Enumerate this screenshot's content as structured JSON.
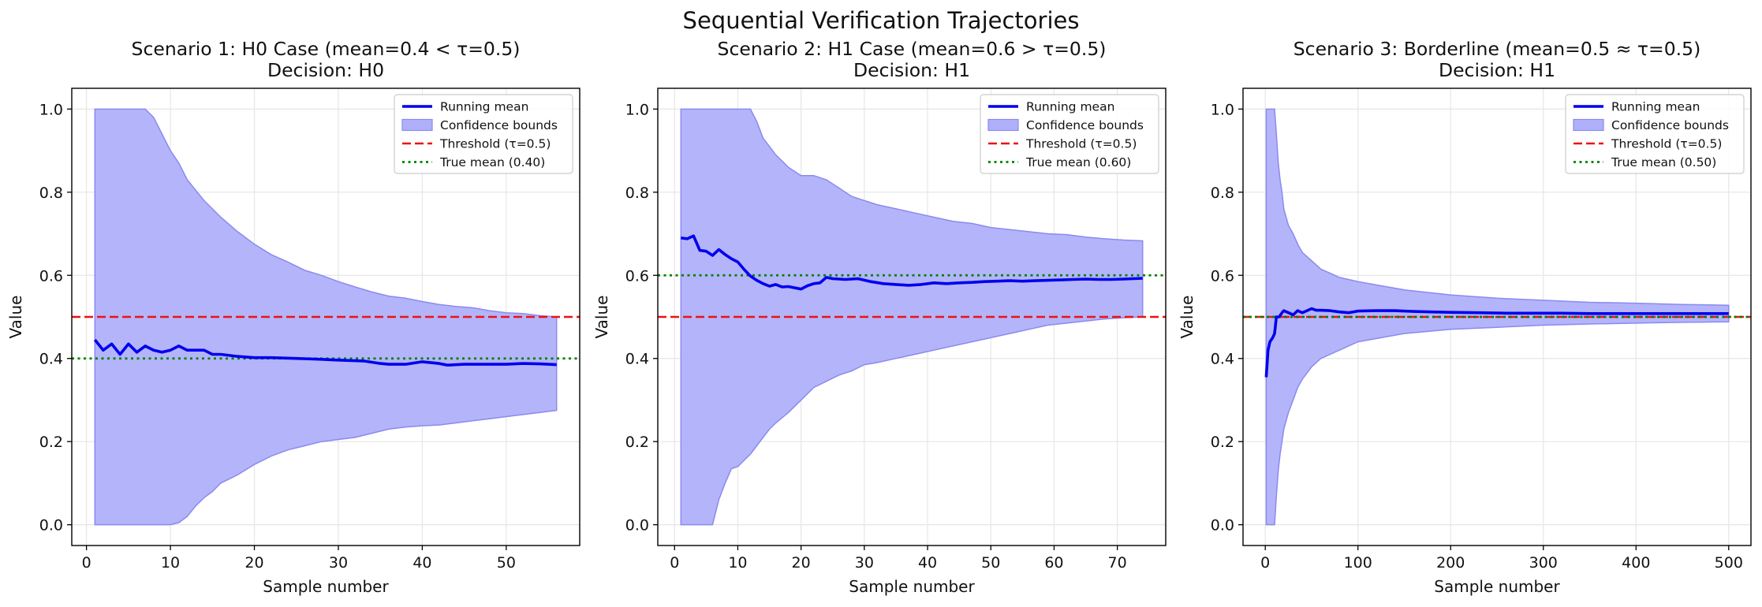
{
  "figure": {
    "suptitle": "Sequential Verification Trajectories"
  },
  "colors": {
    "running_mean": "#0000ee",
    "band": "#b0b0fa",
    "band_edge": "#8a8af0",
    "threshold": "#ee1111",
    "true_mean": "#008000"
  },
  "chart_data": [
    {
      "type": "line",
      "title": "Scenario 1: H0 Case (mean=0.4 < τ=0.5)",
      "subtitle": "Decision: H0",
      "xlabel": "Sample number",
      "ylabel": "Value",
      "xlim": [
        -1.75,
        58.75
      ],
      "ylim": [
        -0.05,
        1.05
      ],
      "xticks": [
        0,
        10,
        20,
        30,
        40,
        50
      ],
      "yticks": [
        0.0,
        0.2,
        0.4,
        0.6,
        0.8,
        1.0
      ],
      "grid": true,
      "legend_position": "top-right",
      "legend": [
        "Running mean",
        "Confidence bounds",
        "Threshold (τ=0.5)",
        "True mean (0.40)"
      ],
      "threshold": 0.5,
      "true_mean": 0.4,
      "series": [
        {
          "name": "Running mean",
          "x": [
            1,
            2,
            3,
            4,
            5,
            6,
            7,
            8,
            9,
            10,
            11,
            12,
            13,
            14,
            15,
            16,
            18,
            20,
            22,
            25,
            28,
            30,
            33,
            35,
            36,
            38,
            40,
            42,
            43,
            45,
            48,
            50,
            52,
            54,
            56
          ],
          "y": [
            0.445,
            0.42,
            0.435,
            0.41,
            0.435,
            0.415,
            0.43,
            0.42,
            0.415,
            0.42,
            0.43,
            0.42,
            0.42,
            0.42,
            0.41,
            0.41,
            0.405,
            0.402,
            0.402,
            0.4,
            0.398,
            0.396,
            0.394,
            0.388,
            0.386,
            0.386,
            0.392,
            0.388,
            0.384,
            0.386,
            0.386,
            0.386,
            0.388,
            0.387,
            0.385
          ]
        },
        {
          "name": "Confidence bounds upper",
          "x": [
            1,
            7,
            8,
            9,
            10,
            11,
            12,
            14,
            16,
            18,
            20,
            22,
            24,
            26,
            28,
            30,
            32,
            34,
            36,
            38,
            40,
            42,
            44,
            46,
            48,
            50,
            52,
            54,
            56
          ],
          "y": [
            1.0,
            1.0,
            0.98,
            0.94,
            0.9,
            0.87,
            0.83,
            0.78,
            0.74,
            0.705,
            0.675,
            0.65,
            0.632,
            0.612,
            0.6,
            0.585,
            0.572,
            0.56,
            0.55,
            0.545,
            0.537,
            0.53,
            0.525,
            0.522,
            0.515,
            0.51,
            0.508,
            0.503,
            0.5
          ]
        },
        {
          "name": "Confidence bounds lower",
          "x": [
            1,
            10,
            11,
            12,
            13,
            14,
            15,
            16,
            18,
            20,
            22,
            24,
            26,
            28,
            30,
            32,
            34,
            36,
            38,
            40,
            42,
            44,
            46,
            48,
            50,
            52,
            54,
            56
          ],
          "y": [
            0.0,
            0.0,
            0.005,
            0.02,
            0.045,
            0.065,
            0.08,
            0.1,
            0.12,
            0.145,
            0.165,
            0.18,
            0.19,
            0.2,
            0.205,
            0.21,
            0.22,
            0.23,
            0.235,
            0.238,
            0.24,
            0.245,
            0.25,
            0.255,
            0.26,
            0.265,
            0.27,
            0.275
          ]
        }
      ]
    },
    {
      "type": "line",
      "title": "Scenario 2: H1 Case (mean=0.6 > τ=0.5)",
      "subtitle": "Decision: H1",
      "xlabel": "Sample number",
      "ylabel": "Value",
      "xlim": [
        -2.65,
        77.65
      ],
      "ylim": [
        -0.05,
        1.05
      ],
      "xticks": [
        0,
        10,
        20,
        30,
        40,
        50,
        60,
        70
      ],
      "yticks": [
        0.0,
        0.2,
        0.4,
        0.6,
        0.8,
        1.0
      ],
      "grid": true,
      "legend_position": "top-right",
      "legend": [
        "Running mean",
        "Confidence bounds",
        "Threshold (τ=0.5)",
        "True mean (0.60)"
      ],
      "threshold": 0.5,
      "true_mean": 0.6,
      "series": [
        {
          "name": "Running mean",
          "x": [
            1,
            2,
            3,
            4,
            5,
            6,
            7,
            8,
            9,
            10,
            11,
            12,
            13,
            14,
            15,
            16,
            17,
            18,
            19,
            20,
            21,
            22,
            23,
            24,
            25,
            27,
            29,
            31,
            33,
            35,
            37,
            39,
            41,
            43,
            45,
            47,
            49,
            51,
            53,
            55,
            57,
            59,
            61,
            63,
            65,
            67,
            69,
            71,
            74
          ],
          "y": [
            0.69,
            0.688,
            0.695,
            0.66,
            0.658,
            0.648,
            0.662,
            0.65,
            0.64,
            0.632,
            0.614,
            0.598,
            0.588,
            0.58,
            0.574,
            0.578,
            0.572,
            0.573,
            0.57,
            0.567,
            0.575,
            0.58,
            0.582,
            0.595,
            0.592,
            0.59,
            0.592,
            0.585,
            0.58,
            0.578,
            0.576,
            0.578,
            0.582,
            0.58,
            0.582,
            0.583,
            0.585,
            0.586,
            0.587,
            0.586,
            0.587,
            0.588,
            0.589,
            0.59,
            0.591,
            0.59,
            0.59,
            0.591,
            0.593
          ]
        },
        {
          "name": "Confidence bounds upper",
          "x": [
            1,
            12,
            13,
            14,
            15,
            16,
            18,
            20,
            22,
            24,
            26,
            28,
            30,
            32,
            35,
            38,
            41,
            44,
            47,
            50,
            53,
            56,
            59,
            62,
            65,
            68,
            71,
            74
          ],
          "y": [
            1.0,
            1.0,
            0.97,
            0.93,
            0.91,
            0.89,
            0.86,
            0.84,
            0.84,
            0.83,
            0.81,
            0.79,
            0.78,
            0.77,
            0.76,
            0.75,
            0.74,
            0.73,
            0.725,
            0.715,
            0.71,
            0.705,
            0.7,
            0.698,
            0.692,
            0.688,
            0.685,
            0.683
          ]
        },
        {
          "name": "Confidence bounds lower",
          "x": [
            1,
            6,
            7,
            8,
            9,
            10,
            11,
            12,
            13,
            14,
            15,
            16,
            18,
            20,
            22,
            24,
            26,
            28,
            30,
            32,
            35,
            38,
            41,
            44,
            47,
            50,
            53,
            56,
            59,
            62,
            65,
            68,
            71,
            74
          ],
          "y": [
            0.0,
            0.0,
            0.06,
            0.1,
            0.135,
            0.14,
            0.155,
            0.17,
            0.19,
            0.21,
            0.23,
            0.245,
            0.27,
            0.3,
            0.33,
            0.345,
            0.36,
            0.37,
            0.385,
            0.39,
            0.4,
            0.41,
            0.42,
            0.43,
            0.44,
            0.45,
            0.46,
            0.47,
            0.48,
            0.485,
            0.49,
            0.495,
            0.498,
            0.5
          ]
        }
      ]
    },
    {
      "type": "line",
      "title": "Scenario 3: Borderline (mean=0.5 ≈ τ=0.5)",
      "subtitle": "Decision: H1",
      "xlabel": "Sample number",
      "ylabel": "Value",
      "xlim": [
        -24,
        524
      ],
      "ylim": [
        -0.05,
        1.05
      ],
      "xticks": [
        0,
        100,
        200,
        300,
        400,
        500
      ],
      "yticks": [
        0.0,
        0.2,
        0.4,
        0.6,
        0.8,
        1.0
      ],
      "grid": true,
      "legend_position": "top-right",
      "legend": [
        "Running mean",
        "Confidence bounds",
        "Threshold (τ=0.5)",
        "True mean (0.50)"
      ],
      "threshold": 0.5,
      "true_mean": 0.5,
      "series": [
        {
          "name": "Running mean",
          "x": [
            1,
            3,
            5,
            8,
            10,
            12,
            15,
            18,
            20,
            25,
            30,
            35,
            40,
            45,
            50,
            55,
            60,
            70,
            80,
            90,
            100,
            120,
            140,
            160,
            180,
            200,
            230,
            260,
            290,
            320,
            350,
            380,
            410,
            440,
            470,
            500
          ],
          "y": [
            0.355,
            0.42,
            0.44,
            0.45,
            0.46,
            0.5,
            0.5,
            0.51,
            0.515,
            0.51,
            0.505,
            0.515,
            0.51,
            0.515,
            0.52,
            0.516,
            0.516,
            0.515,
            0.512,
            0.51,
            0.514,
            0.515,
            0.515,
            0.513,
            0.512,
            0.511,
            0.51,
            0.509,
            0.509,
            0.509,
            0.508,
            0.508,
            0.508,
            0.508,
            0.508,
            0.508
          ]
        },
        {
          "name": "Confidence bounds upper",
          "x": [
            1,
            10,
            12,
            14,
            16,
            18,
            20,
            25,
            30,
            35,
            40,
            50,
            60,
            70,
            80,
            100,
            125,
            150,
            200,
            250,
            300,
            350,
            400,
            450,
            500
          ],
          "y": [
            1.0,
            1.0,
            0.94,
            0.87,
            0.83,
            0.8,
            0.76,
            0.72,
            0.7,
            0.675,
            0.655,
            0.635,
            0.615,
            0.605,
            0.595,
            0.585,
            0.575,
            0.565,
            0.553,
            0.545,
            0.54,
            0.535,
            0.533,
            0.53,
            0.528
          ]
        },
        {
          "name": "Confidence bounds lower",
          "x": [
            1,
            10,
            12,
            14,
            16,
            18,
            20,
            25,
            30,
            35,
            40,
            50,
            60,
            70,
            80,
            100,
            125,
            150,
            200,
            250,
            300,
            350,
            400,
            450,
            500
          ],
          "y": [
            0.0,
            0.0,
            0.07,
            0.13,
            0.17,
            0.2,
            0.23,
            0.27,
            0.3,
            0.33,
            0.35,
            0.38,
            0.4,
            0.41,
            0.42,
            0.44,
            0.45,
            0.46,
            0.47,
            0.475,
            0.48,
            0.483,
            0.485,
            0.487,
            0.488
          ]
        }
      ]
    }
  ]
}
